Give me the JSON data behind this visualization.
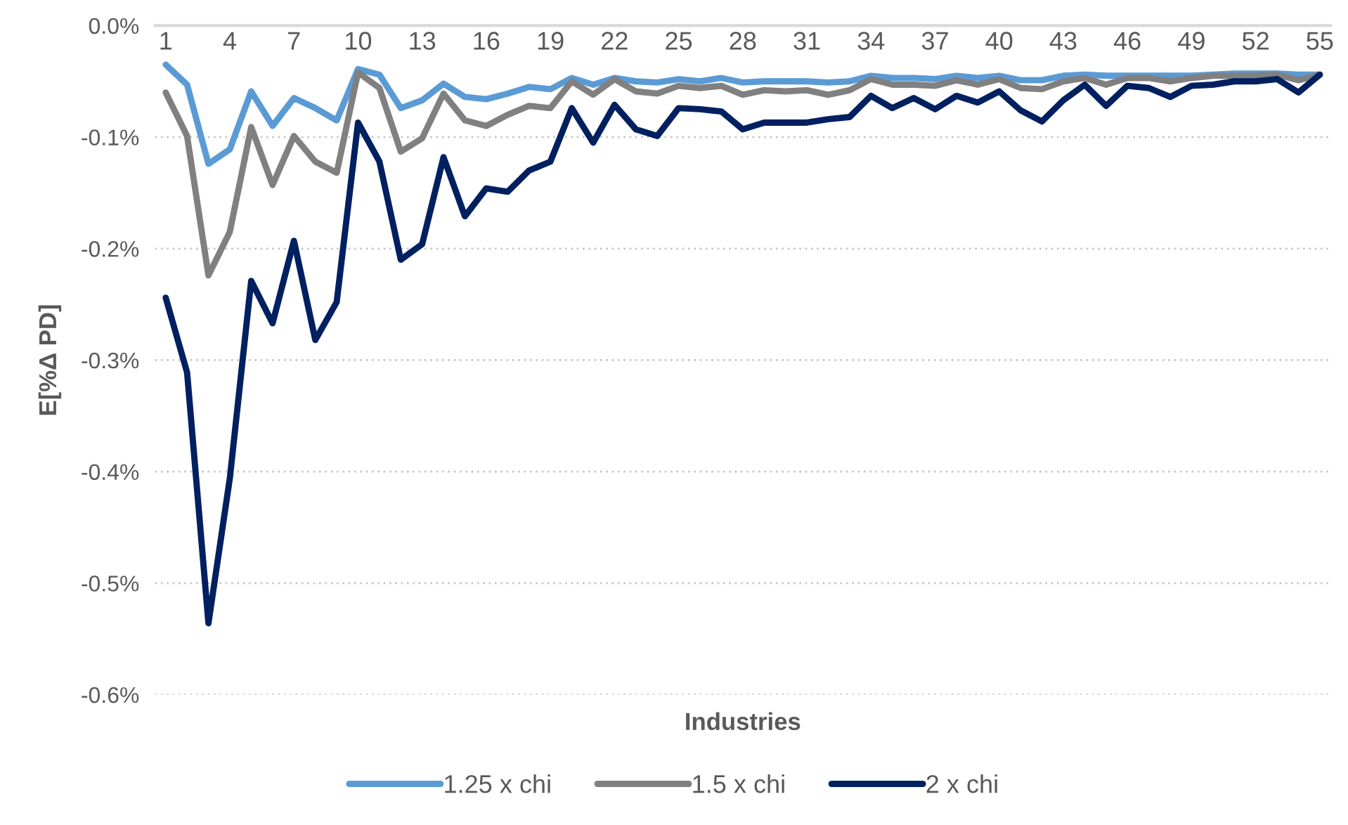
{
  "chart_data": {
    "type": "line",
    "xlabel": "Industries",
    "ylabel": "E[%Δ PD]",
    "categories": [
      "1",
      null,
      null,
      "4",
      null,
      null,
      "7",
      null,
      null,
      "10",
      null,
      null,
      "13",
      null,
      null,
      "16",
      null,
      null,
      "19",
      null,
      null,
      "22",
      null,
      null,
      "25",
      null,
      null,
      "28",
      null,
      null,
      "31",
      null,
      null,
      "34",
      null,
      null,
      "37",
      null,
      null,
      "40",
      null,
      null,
      "43",
      null,
      null,
      "46",
      null,
      null,
      "49",
      null,
      null,
      "52",
      null,
      null,
      "55"
    ],
    "series": [
      {
        "name": "1.25 x chi",
        "color": "#5b9bd5",
        "values": [
          -0.035,
          -0.053,
          -0.124,
          -0.111,
          -0.059,
          -0.09,
          -0.065,
          -0.074,
          -0.085,
          -0.039,
          -0.044,
          -0.074,
          -0.067,
          -0.052,
          -0.064,
          -0.066,
          -0.061,
          -0.055,
          -0.057,
          -0.047,
          -0.053,
          -0.047,
          -0.05,
          -0.051,
          -0.048,
          -0.05,
          -0.047,
          -0.051,
          -0.05,
          -0.05,
          -0.05,
          -0.051,
          -0.05,
          -0.045,
          -0.047,
          -0.047,
          -0.048,
          -0.045,
          -0.047,
          -0.045,
          -0.049,
          -0.049,
          -0.045,
          -0.044,
          -0.045,
          -0.045,
          -0.045,
          -0.045,
          -0.045,
          -0.044,
          -0.043,
          -0.043,
          -0.043,
          -0.044,
          -0.044
        ]
      },
      {
        "name": "1.5 x chi",
        "color": "#808080",
        "values": [
          -0.06,
          -0.099,
          -0.224,
          -0.185,
          -0.091,
          -0.143,
          -0.099,
          -0.122,
          -0.132,
          -0.042,
          -0.056,
          -0.113,
          -0.101,
          -0.061,
          -0.085,
          -0.09,
          -0.08,
          -0.072,
          -0.074,
          -0.05,
          -0.062,
          -0.048,
          -0.059,
          -0.061,
          -0.054,
          -0.056,
          -0.054,
          -0.062,
          -0.058,
          -0.059,
          -0.058,
          -0.062,
          -0.058,
          -0.048,
          -0.053,
          -0.053,
          -0.054,
          -0.049,
          -0.053,
          -0.048,
          -0.056,
          -0.057,
          -0.05,
          -0.047,
          -0.053,
          -0.047,
          -0.047,
          -0.05,
          -0.047,
          -0.045,
          -0.045,
          -0.045,
          -0.044,
          -0.049,
          -0.044
        ]
      },
      {
        "name": "2 x chi",
        "color": "#002060",
        "values": [
          -0.244,
          -0.311,
          -0.536,
          -0.406,
          -0.229,
          -0.267,
          -0.193,
          -0.282,
          -0.248,
          -0.087,
          -0.122,
          -0.21,
          -0.196,
          -0.118,
          -0.171,
          -0.146,
          -0.149,
          -0.13,
          -0.122,
          -0.074,
          -0.105,
          -0.071,
          -0.093,
          -0.099,
          -0.074,
          -0.075,
          -0.077,
          -0.093,
          -0.087,
          -0.087,
          -0.087,
          -0.084,
          -0.082,
          -0.063,
          -0.074,
          -0.065,
          -0.075,
          -0.063,
          -0.069,
          -0.059,
          -0.076,
          -0.086,
          -0.067,
          -0.053,
          -0.072,
          -0.054,
          -0.056,
          -0.064,
          -0.054,
          -0.053,
          -0.05,
          -0.05,
          -0.048,
          -0.06,
          -0.044
        ]
      }
    ],
    "ylim": [
      -0.6,
      0
    ],
    "yticks": [
      {
        "value": 0,
        "label": "0.0%"
      },
      {
        "value": -0.1,
        "label": "-0.1%"
      },
      {
        "value": -0.2,
        "label": "-0.2%"
      },
      {
        "value": -0.3,
        "label": "-0.3%"
      },
      {
        "value": -0.4,
        "label": "-0.4%"
      },
      {
        "value": -0.5,
        "label": "-0.5%"
      },
      {
        "value": -0.6,
        "label": "-0.6%"
      }
    ],
    "grid": "y",
    "legend": "bottom",
    "line_style": "solid"
  }
}
